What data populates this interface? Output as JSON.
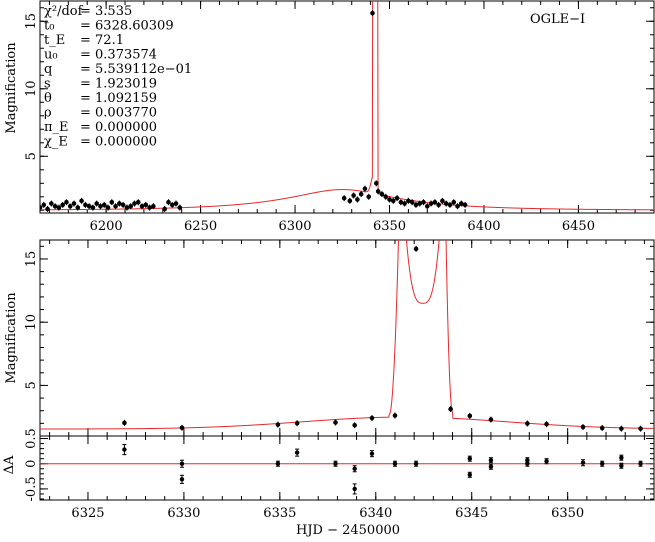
{
  "figure": {
    "xlabel": "HJD − 2450000",
    "colors": {
      "model": "#e8282b",
      "points": "#000000",
      "axes": "#000000"
    }
  },
  "params": [
    {
      "name": "χ²/dof",
      "value": "= 3.535"
    },
    {
      "name": "t₀",
      "value": "= 6328.60309"
    },
    {
      "name": "t_E",
      "value": "= 72.1"
    },
    {
      "name": "u₀",
      "value": "= 0.373574"
    },
    {
      "name": "q",
      "value": "= 5.539112e−01"
    },
    {
      "name": "s",
      "value": "= 1.923019"
    },
    {
      "name": "θ",
      "value": "= 1.092159"
    },
    {
      "name": "ρ",
      "value": "= 0.003770"
    },
    {
      "name": "π_E",
      "value": "= 0.000000"
    },
    {
      "name": "χ_E",
      "value": "= 0.000000"
    }
  ],
  "chart_data": [
    {
      "type": "scatter",
      "panel": "top",
      "ylabel": "Magnification",
      "annotation": "OGLE−I",
      "xlim": [
        6165,
        6490
      ],
      "ylim": [
        0.8,
        16.5
      ],
      "xticks": [
        6200,
        6250,
        6300,
        6350,
        6400,
        6450
      ],
      "yticks": [
        5,
        10,
        15
      ],
      "series": [
        {
          "kind": "model",
          "note": "binary-lens model curve"
        },
        {
          "kind": "points",
          "x": [
            6165,
            6167,
            6169,
            6171,
            6173,
            6175,
            6177,
            6179,
            6181,
            6183,
            6185,
            6187,
            6189,
            6191,
            6193,
            6195,
            6197,
            6199,
            6201,
            6203,
            6205,
            6207,
            6209,
            6211,
            6213,
            6215,
            6217,
            6219,
            6221,
            6223,
            6225,
            6231,
            6233,
            6235,
            6237,
            6239,
            6326,
            6329,
            6331,
            6333,
            6335,
            6337,
            6339,
            6341,
            6343,
            6344,
            6346,
            6348,
            6350,
            6352,
            6354,
            6356,
            6358,
            6360,
            6362,
            6364,
            6366,
            6368,
            6370,
            6372,
            6374,
            6376,
            6378,
            6380,
            6382,
            6384,
            6386,
            6388,
            6390
          ],
          "y": [
            1.2,
            1.4,
            1.1,
            1.5,
            1.3,
            1.2,
            1.4,
            1.6,
            1.3,
            1.5,
            1.2,
            1.7,
            1.4,
            1.3,
            1.2,
            1.5,
            1.3,
            1.4,
            1.2,
            1.6,
            1.3,
            1.5,
            1.4,
            1.2,
            1.3,
            1.5,
            1.6,
            1.3,
            1.4,
            1.2,
            1.3,
            1.1,
            1.6,
            1.4,
            1.5,
            1.2,
            1.9,
            1.7,
            2.1,
            1.8,
            2.2,
            2.6,
            2.0,
            15.6,
            3.0,
            2.4,
            2.2,
            2.0,
            1.8,
            1.7,
            1.9,
            1.6,
            1.5,
            1.7,
            1.6,
            1.4,
            1.5,
            1.6,
            1.3,
            1.5,
            1.6,
            1.4,
            1.7,
            1.5,
            1.4,
            1.6,
            1.3,
            1.5,
            1.4
          ]
        }
      ]
    },
    {
      "type": "scatter",
      "panel": "middle",
      "ylabel": "Magnification",
      "xlim": [
        6322.5,
        6354.5
      ],
      "ylim": [
        1.0,
        16.5
      ],
      "xticks": [
        6325,
        6330,
        6335,
        6340,
        6345,
        6350
      ],
      "yticks": [
        5,
        10,
        15
      ],
      "series": [
        {
          "kind": "model",
          "note": "binary-lens model curve (zoom)"
        },
        {
          "kind": "points",
          "x": [
            6326.9,
            6329.9,
            6334.9,
            6335.9,
            6337.9,
            6338.9,
            6339.8,
            6341.0,
            6342.1,
            6343.9,
            6344.9,
            6346.0,
            6347.9,
            6348.9,
            6350.8,
            6351.8,
            6352.8,
            6353.8
          ],
          "y": [
            2.04,
            1.65,
            1.9,
            2.01,
            2.07,
            1.85,
            2.42,
            2.62,
            15.8,
            3.13,
            2.59,
            2.3,
            1.99,
            1.94,
            1.71,
            1.63,
            1.58,
            1.58
          ]
        }
      ]
    },
    {
      "type": "scatter",
      "panel": "residuals",
      "ylabel": "ΔA",
      "xlim": [
        6322.5,
        6354.5
      ],
      "ylim": [
        -0.72,
        0.55
      ],
      "yticks": [
        -0.5,
        0,
        0.5
      ],
      "series": [
        {
          "kind": "zero-line"
        },
        {
          "kind": "points-with-errors",
          "x": [
            6326.9,
            6329.9,
            6329.9,
            6334.9,
            6335.9,
            6337.9,
            6338.9,
            6338.9,
            6339.8,
            6341.0,
            6342.1,
            6344.9,
            6344.9,
            6346.0,
            6346.0,
            6347.9,
            6347.9,
            6348.9,
            6350.8,
            6351.8,
            6352.8,
            6352.8,
            6353.8
          ],
          "y": [
            0.28,
            0.0,
            -0.31,
            0.0,
            0.22,
            0.0,
            -0.1,
            -0.5,
            0.2,
            0.0,
            0.0,
            0.1,
            -0.22,
            0.07,
            -0.06,
            0.07,
            0.0,
            0.05,
            0.02,
            0.0,
            0.12,
            -0.04,
            0.0
          ],
          "err": [
            0.1,
            0.07,
            0.08,
            0.05,
            0.07,
            0.05,
            0.06,
            0.1,
            0.06,
            0.05,
            0.05,
            0.05,
            0.05,
            0.05,
            0.05,
            0.05,
            0.05,
            0.05,
            0.06,
            0.05,
            0.05,
            0.05,
            0.05
          ]
        }
      ]
    }
  ]
}
